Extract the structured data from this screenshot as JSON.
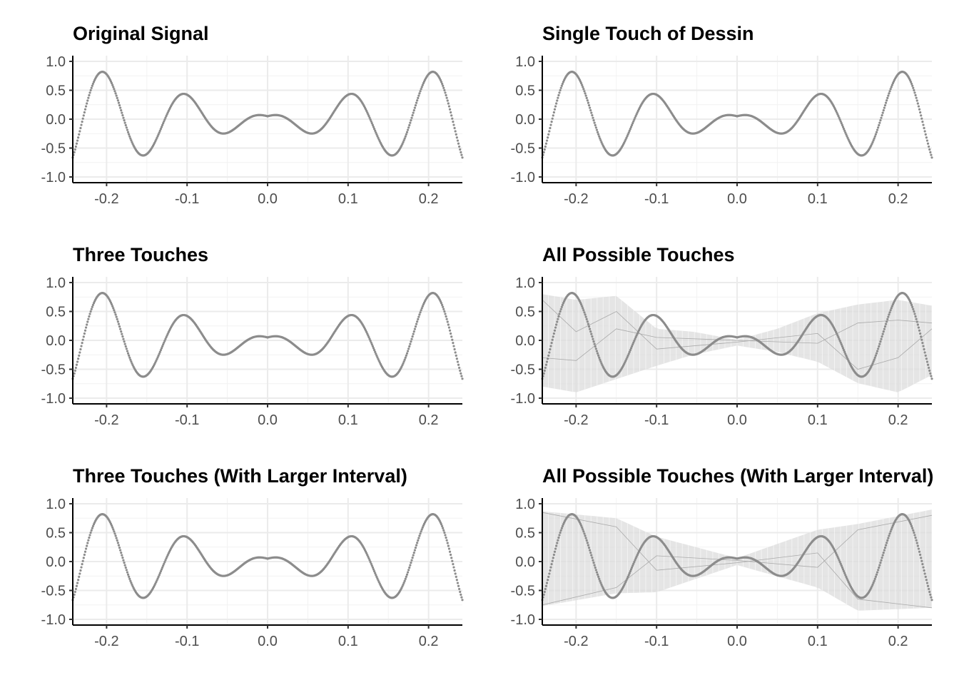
{
  "chart_data": [
    {
      "type": "scatter",
      "title": "Original Signal",
      "xlabel": "",
      "ylabel": "",
      "xlim": [
        -0.242,
        0.242
      ],
      "ylim": [
        -1.0,
        1.0
      ],
      "x_ticks": [
        "-0.2",
        "-0.1",
        "0.0",
        "0.1",
        "0.2"
      ],
      "y_ticks": [
        "-1.0",
        "-0.5",
        "0.0",
        "0.5",
        "1.0"
      ],
      "grid": true,
      "signal": {
        "amplitude_envelope": "a*|x|+b",
        "a": 3.76,
        "b": 0.05,
        "cycles_per_unit": 9.8,
        "points": 500
      },
      "touch_band": null
    },
    {
      "type": "scatter",
      "title": "Single Touch of Dessin",
      "xlabel": "",
      "ylabel": "",
      "xlim": [
        -0.242,
        0.242
      ],
      "ylim": [
        -1.0,
        1.0
      ],
      "x_ticks": [
        "-0.2",
        "-0.1",
        "0.0",
        "0.1",
        "0.2"
      ],
      "y_ticks": [
        "-1.0",
        "-0.5",
        "0.0",
        "0.5",
        "1.0"
      ],
      "grid": true,
      "signal": {
        "amplitude_envelope": "a*|x|+b",
        "a": 3.76,
        "b": 0.05,
        "cycles_per_unit": 9.8,
        "points": 500
      },
      "touch_band": null
    },
    {
      "type": "scatter",
      "title": "Three Touches",
      "xlabel": "",
      "ylabel": "",
      "xlim": [
        -0.242,
        0.242
      ],
      "ylim": [
        -1.0,
        1.0
      ],
      "x_ticks": [
        "-0.2",
        "-0.1",
        "0.0",
        "0.1",
        "0.2"
      ],
      "y_ticks": [
        "-1.0",
        "-0.5",
        "0.0",
        "0.5",
        "1.0"
      ],
      "grid": true,
      "signal": {
        "amplitude_envelope": "a*|x|+b",
        "a": 3.76,
        "b": 0.05,
        "cycles_per_unit": 9.8,
        "points": 500
      },
      "touch_band": null
    },
    {
      "type": "scatter",
      "title": "All Possible Touches",
      "xlabel": "",
      "ylabel": "",
      "xlim": [
        -0.242,
        0.242
      ],
      "ylim": [
        -1.0,
        1.0
      ],
      "x_ticks": [
        "-0.2",
        "-0.1",
        "0.0",
        "0.1",
        "0.2"
      ],
      "y_ticks": [
        "-1.0",
        "-0.5",
        "0.0",
        "0.5",
        "1.0"
      ],
      "grid": true,
      "signal": {
        "amplitude_envelope": "a*|x|+b",
        "a": 3.76,
        "b": 0.05,
        "cycles_per_unit": 9.8,
        "points": 500
      },
      "touch_band": {
        "center_x": [
          -0.242,
          -0.2,
          -0.15,
          -0.1,
          -0.055,
          0.0,
          0.05,
          0.1,
          0.15,
          0.2,
          0.242
        ],
        "center_y": [
          0.0,
          -0.1,
          0.05,
          -0.12,
          -0.05,
          -0.04,
          0.0,
          0.05,
          -0.06,
          -0.1,
          0.0
        ],
        "halfwidth": [
          0.8,
          0.8,
          0.72,
          0.32,
          0.2,
          0.05,
          0.2,
          0.42,
          0.68,
          0.8,
          0.6
        ],
        "lines": [
          [
            [
              -0.242,
              0.7
            ],
            [
              -0.2,
              0.15
            ],
            [
              -0.15,
              0.5
            ],
            [
              -0.1,
              -0.15
            ],
            [
              0.0,
              -0.03
            ],
            [
              0.1,
              0.12
            ],
            [
              0.15,
              -0.5
            ],
            [
              0.2,
              -0.3
            ],
            [
              0.242,
              0.2
            ]
          ],
          [
            [
              -0.242,
              -0.3
            ],
            [
              -0.2,
              -0.35
            ],
            [
              -0.15,
              0.2
            ],
            [
              -0.1,
              0.05
            ],
            [
              0.0,
              0.0
            ],
            [
              0.1,
              -0.05
            ],
            [
              0.15,
              0.3
            ],
            [
              0.2,
              0.35
            ],
            [
              0.242,
              0.3
            ]
          ]
        ]
      }
    },
    {
      "type": "scatter",
      "title": "Three Touches (With Larger Interval)",
      "xlabel": "",
      "ylabel": "",
      "xlim": [
        -0.242,
        0.242
      ],
      "ylim": [
        -1.0,
        1.0
      ],
      "x_ticks": [
        "-0.2",
        "-0.1",
        "0.0",
        "0.1",
        "0.2"
      ],
      "y_ticks": [
        "-1.0",
        "-0.5",
        "0.0",
        "0.5",
        "1.0"
      ],
      "grid": true,
      "signal": {
        "amplitude_envelope": "a*|x|+b",
        "a": 3.76,
        "b": 0.05,
        "cycles_per_unit": 9.8,
        "points": 500
      },
      "touch_band": null
    },
    {
      "type": "scatter",
      "title": "All Possible Touches (With Larger Interval)",
      "xlabel": "",
      "ylabel": "",
      "xlim": [
        -0.242,
        0.242
      ],
      "ylim": [
        -1.0,
        1.0
      ],
      "x_ticks": [
        "-0.2",
        "-0.1",
        "0.0",
        "0.1",
        "0.2"
      ],
      "y_ticks": [
        "-1.0",
        "-0.5",
        "0.0",
        "0.5",
        "1.0"
      ],
      "grid": true,
      "signal": {
        "amplitude_envelope": "a*|x|+b",
        "a": 3.76,
        "b": 0.05,
        "cycles_per_unit": 9.8,
        "points": 500
      },
      "touch_band": {
        "center_x": [
          -0.242,
          -0.15,
          -0.1,
          0.0,
          0.1,
          0.15,
          0.242
        ],
        "center_y": [
          0.05,
          0.1,
          -0.05,
          0.0,
          0.05,
          -0.1,
          0.05
        ],
        "halfwidth": [
          0.82,
          0.65,
          0.48,
          0.06,
          0.5,
          0.75,
          0.85
        ],
        "lines": [
          [
            [
              -0.242,
              0.85
            ],
            [
              -0.15,
              0.6
            ],
            [
              -0.1,
              -0.15
            ],
            [
              0.0,
              -0.02
            ],
            [
              0.1,
              0.15
            ],
            [
              0.15,
              -0.65
            ],
            [
              0.242,
              -0.8
            ]
          ],
          [
            [
              -0.242,
              -0.75
            ],
            [
              -0.15,
              -0.45
            ],
            [
              -0.1,
              0.1
            ],
            [
              0.0,
              0.02
            ],
            [
              0.1,
              -0.1
            ],
            [
              0.15,
              0.55
            ],
            [
              0.242,
              0.8
            ]
          ]
        ]
      }
    }
  ]
}
